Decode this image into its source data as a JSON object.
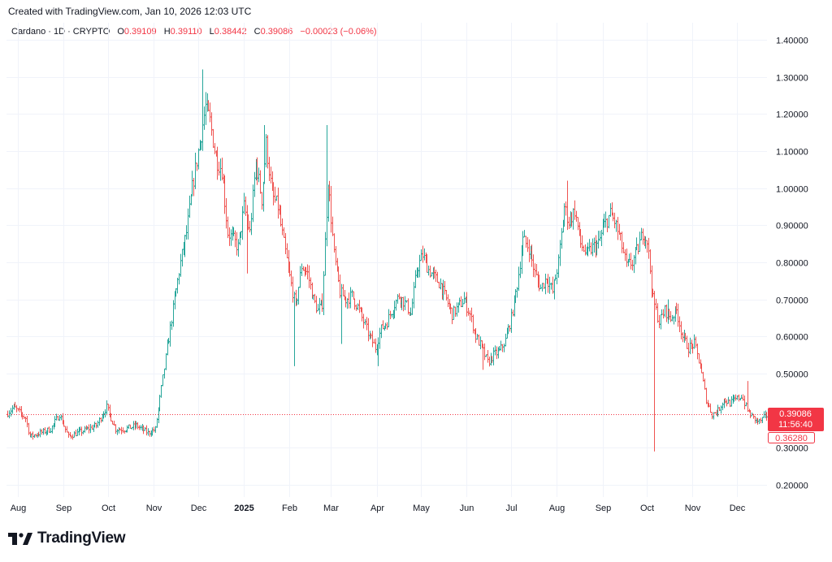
{
  "header": {
    "created": "Created with TradingView.com, Jan 10, 2026 12:03 UTC"
  },
  "legend": {
    "symbol": "Cardano · 1D · CRYPTO",
    "open_label": "O",
    "open": "0.39109",
    "high_label": "H",
    "high": "0.39110",
    "low_label": "L",
    "low": "0.38442",
    "close_label": "C",
    "close": "0.39086",
    "change": "−0.00023 (−0.06%)"
  },
  "price_badges": {
    "last_price": "0.39086",
    "countdown": "11:56:40",
    "low_marker": "0.36280"
  },
  "footer": {
    "brand": "TradingView"
  },
  "colors": {
    "up": "#26a69a",
    "down": "#ef5350",
    "grid": "#f0f3fa",
    "price_line": "#f23645"
  },
  "chart_data": {
    "type": "bar",
    "style": "ohlc-daily",
    "title": "Cardano · 1D · CRYPTO",
    "ylim": [
      0.16,
      1.44
    ],
    "y_ticks": [
      "1.40000",
      "1.30000",
      "1.20000",
      "1.10000",
      "1.00000",
      "0.90000",
      "0.80000",
      "0.70000",
      "0.60000",
      "0.50000",
      "0.30000",
      "0.20000"
    ],
    "y_tick_values": [
      1.4,
      1.3,
      1.2,
      1.1,
      1.0,
      0.9,
      0.8,
      0.7,
      0.6,
      0.5,
      0.3,
      0.2
    ],
    "x_ticks": [
      "Aug",
      "Sep",
      "Oct",
      "Nov",
      "Dec",
      "2025",
      "Feb",
      "Mar",
      "Apr",
      "May",
      "Jun",
      "Jul",
      "Aug",
      "Sep",
      "Oct",
      "Nov",
      "Dec"
    ],
    "x_tick_days": [
      0,
      31,
      61,
      92,
      122,
      153,
      184,
      212,
      243,
      273,
      304,
      334,
      365,
      396,
      426,
      457,
      487
    ],
    "last_price": 0.39086,
    "anchors": [
      [
        -8,
        0.39
      ],
      [
        -3,
        0.41
      ],
      [
        5,
        0.38
      ],
      [
        8,
        0.33
      ],
      [
        15,
        0.34
      ],
      [
        22,
        0.35
      ],
      [
        28,
        0.39
      ],
      [
        34,
        0.33
      ],
      [
        40,
        0.34
      ],
      [
        47,
        0.35
      ],
      [
        53,
        0.36
      ],
      [
        60,
        0.41
      ],
      [
        66,
        0.35
      ],
      [
        72,
        0.35
      ],
      [
        80,
        0.36
      ],
      [
        88,
        0.34
      ],
      [
        93,
        0.35
      ],
      [
        97,
        0.46
      ],
      [
        101,
        0.57
      ],
      [
        106,
        0.7
      ],
      [
        110,
        0.8
      ],
      [
        114,
        0.88
      ],
      [
        118,
        1.0
      ],
      [
        122,
        1.1
      ],
      [
        127,
        1.22
      ],
      [
        130,
        1.18
      ],
      [
        134,
        1.08
      ],
      [
        138,
        1.05
      ],
      [
        142,
        0.88
      ],
      [
        146,
        0.86
      ],
      [
        149,
        0.84
      ],
      [
        153,
        0.95
      ],
      [
        157,
        0.88
      ],
      [
        161,
        1.07
      ],
      [
        165,
        0.97
      ],
      [
        168,
        1.12
      ],
      [
        172,
        0.98
      ],
      [
        176,
        0.95
      ],
      [
        180,
        0.85
      ],
      [
        184,
        0.76
      ],
      [
        188,
        0.68
      ],
      [
        192,
        0.79
      ],
      [
        196,
        0.77
      ],
      [
        200,
        0.7
      ],
      [
        203,
        0.67
      ],
      [
        206,
        0.69
      ],
      [
        210,
        1.02
      ],
      [
        214,
        0.82
      ],
      [
        218,
        0.72
      ],
      [
        222,
        0.7
      ],
      [
        226,
        0.71
      ],
      [
        230,
        0.68
      ],
      [
        234,
        0.64
      ],
      [
        238,
        0.6
      ],
      [
        242,
        0.57
      ],
      [
        246,
        0.62
      ],
      [
        250,
        0.64
      ],
      [
        254,
        0.68
      ],
      [
        258,
        0.71
      ],
      [
        262,
        0.69
      ],
      [
        266,
        0.66
      ],
      [
        270,
        0.78
      ],
      [
        274,
        0.82
      ],
      [
        278,
        0.78
      ],
      [
        282,
        0.76
      ],
      [
        286,
        0.74
      ],
      [
        290,
        0.7
      ],
      [
        294,
        0.66
      ],
      [
        298,
        0.68
      ],
      [
        302,
        0.7
      ],
      [
        306,
        0.66
      ],
      [
        310,
        0.6
      ],
      [
        314,
        0.57
      ],
      [
        318,
        0.53
      ],
      [
        322,
        0.55
      ],
      [
        326,
        0.56
      ],
      [
        330,
        0.59
      ],
      [
        334,
        0.65
      ],
      [
        338,
        0.74
      ],
      [
        342,
        0.86
      ],
      [
        346,
        0.84
      ],
      [
        350,
        0.77
      ],
      [
        354,
        0.73
      ],
      [
        358,
        0.76
      ],
      [
        362,
        0.72
      ],
      [
        366,
        0.8
      ],
      [
        370,
        0.95
      ],
      [
        373,
        0.91
      ],
      [
        377,
        0.94
      ],
      [
        381,
        0.85
      ],
      [
        385,
        0.82
      ],
      [
        389,
        0.84
      ],
      [
        393,
        0.85
      ],
      [
        397,
        0.9
      ],
      [
        401,
        0.93
      ],
      [
        404,
        0.91
      ],
      [
        408,
        0.86
      ],
      [
        412,
        0.79
      ],
      [
        416,
        0.8
      ],
      [
        420,
        0.84
      ],
      [
        423,
        0.88
      ],
      [
        426,
        0.86
      ],
      [
        430,
        0.7
      ],
      [
        434,
        0.64
      ],
      [
        438,
        0.67
      ],
      [
        442,
        0.65
      ],
      [
        446,
        0.67
      ],
      [
        450,
        0.6
      ],
      [
        454,
        0.57
      ],
      [
        458,
        0.58
      ],
      [
        462,
        0.52
      ],
      [
        466,
        0.43
      ],
      [
        470,
        0.39
      ],
      [
        474,
        0.4
      ],
      [
        478,
        0.43
      ],
      [
        482,
        0.42
      ],
      [
        486,
        0.43
      ],
      [
        490,
        0.44
      ],
      [
        494,
        0.4
      ],
      [
        498,
        0.38
      ],
      [
        502,
        0.37
      ],
      [
        506,
        0.385
      ],
      [
        510,
        0.391
      ]
    ],
    "spikes": [
      {
        "day": 125,
        "high": 1.32
      },
      {
        "day": 155,
        "low": 0.77
      },
      {
        "day": 167,
        "high": 1.17
      },
      {
        "day": 187,
        "low": 0.52
      },
      {
        "day": 209,
        "high": 1.17
      },
      {
        "day": 219,
        "low": 0.58
      },
      {
        "day": 244,
        "low": 0.52
      },
      {
        "day": 315,
        "low": 0.51
      },
      {
        "day": 372,
        "high": 1.02
      },
      {
        "day": 431,
        "low": 0.29
      },
      {
        "day": 440,
        "high": 0.7
      },
      {
        "day": 494,
        "high": 0.48
      }
    ]
  }
}
